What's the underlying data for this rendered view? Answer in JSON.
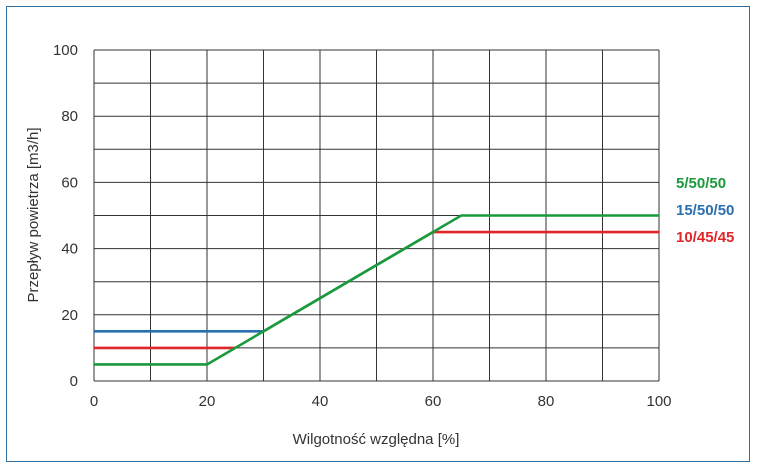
{
  "chart_data": {
    "type": "line",
    "title": "",
    "xlabel": "Wilgotność względna [%]",
    "ylabel": "Przepływ powietrza [m3/h]",
    "xlim": [
      0,
      100
    ],
    "ylim": [
      0,
      100
    ],
    "x_ticks": [
      0,
      20,
      40,
      60,
      80,
      100
    ],
    "y_ticks": [
      0,
      20,
      40,
      60,
      80,
      100
    ],
    "grid": true,
    "legend_placement": "right",
    "series": [
      {
        "name": "5/50/50",
        "color": "#1a9a3c",
        "points": [
          [
            0,
            5
          ],
          [
            20,
            5
          ],
          [
            65,
            50
          ],
          [
            100,
            50
          ]
        ]
      },
      {
        "name": "15/50/50",
        "color": "#2a6fb0",
        "points": [
          [
            0,
            15
          ],
          [
            30,
            15
          ]
        ]
      },
      {
        "name": "10/45/45",
        "color": "#e0262b",
        "points": [
          [
            0,
            10
          ],
          [
            25,
            10
          ]
        ]
      }
    ],
    "overlay_segments": [
      {
        "series": "5/50/50",
        "color": "#1a9a3c",
        "points": [
          [
            30,
            15
          ],
          [
            60,
            45
          ]
        ]
      }
    ],
    "red_plateau": {
      "series": "10/45/45",
      "color": "#e0262b",
      "points": [
        [
          60,
          45
        ],
        [
          100,
          45
        ]
      ]
    }
  }
}
